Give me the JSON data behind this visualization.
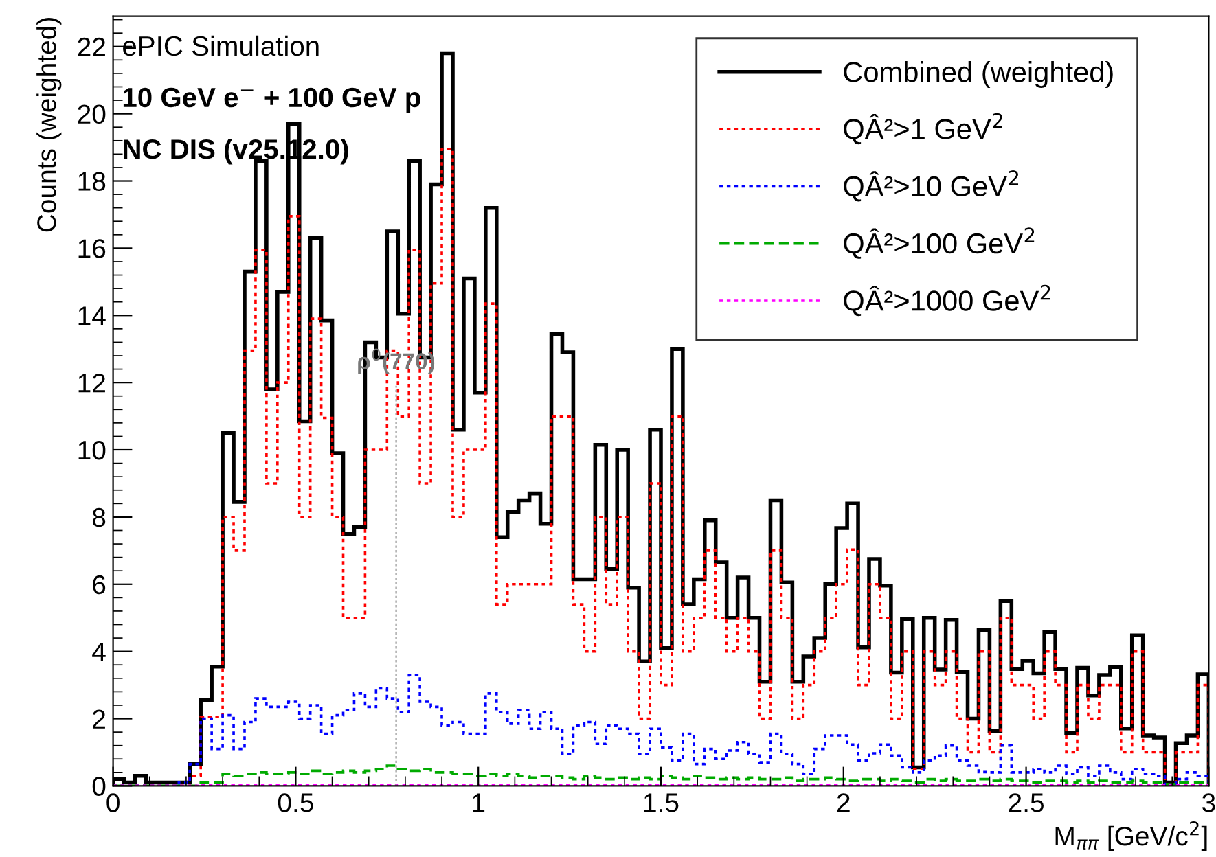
{
  "chart_data": {
    "type": "histogram",
    "xlabel": "M$_{ππ}$ [GeV/c$^{2}$]",
    "ylabel": "Counts (weighted)",
    "annotations": [
      "ePIC Simulation",
      "10 GeV e$^{−}$ + 100 GeV p",
      "NC DIS (v25.12.0)"
    ],
    "bins": [
      0.0,
      0.03,
      0.06,
      0.09,
      0.12,
      0.15,
      0.18,
      0.21,
      0.24,
      0.27,
      0.3,
      0.33,
      0.36,
      0.39,
      0.42,
      0.45,
      0.48,
      0.51,
      0.54,
      0.57,
      0.6,
      0.63,
      0.66,
      0.69,
      0.72,
      0.75,
      0.78,
      0.81,
      0.84,
      0.87,
      0.9,
      0.93,
      0.96,
      0.99,
      1.02,
      1.05,
      1.08,
      1.11,
      1.14,
      1.17,
      1.2,
      1.23,
      1.26,
      1.29,
      1.32,
      1.35,
      1.38,
      1.41,
      1.44,
      1.47,
      1.5,
      1.53,
      1.56,
      1.59,
      1.62,
      1.65,
      1.68,
      1.71,
      1.74,
      1.77,
      1.8,
      1.83,
      1.86,
      1.89,
      1.92,
      1.95,
      1.98,
      2.01,
      2.04,
      2.07,
      2.1,
      2.13,
      2.16,
      2.19,
      2.22,
      2.25,
      2.28,
      2.31,
      2.34,
      2.37,
      2.4,
      2.43,
      2.46,
      2.49,
      2.52,
      2.55,
      2.58,
      2.61,
      2.64,
      2.67,
      2.7,
      2.73,
      2.76,
      2.79,
      2.82,
      2.85,
      2.88,
      2.91,
      2.94,
      2.97,
      3.0
    ],
    "series": [
      {
        "name": "Combined (weighted)",
        "color": "#000000",
        "line_style": "solid",
        "values": [
          0.2,
          0.1,
          0.3,
          0.1,
          0.1,
          0.1,
          0.1,
          0.65,
          2.55,
          3.55,
          10.5,
          8.45,
          15.3,
          18.6,
          11.8,
          14.7,
          19.7,
          10.85,
          16.3,
          13.85,
          9.9,
          7.5,
          7.7,
          13.2,
          12.75,
          16.5,
          14.05,
          18.6,
          12.75,
          17.9,
          21.8,
          10.6,
          15.1,
          11.7,
          17.2,
          7.4,
          8.15,
          8.5,
          8.7,
          7.8,
          13.45,
          12.9,
          6.15,
          6.15,
          10.15,
          6.45,
          10.0,
          5.9,
          3.7,
          10.6,
          4.1,
          13.0,
          5.4,
          6.15,
          7.9,
          6.65,
          5.0,
          6.2,
          5.0,
          3.1,
          8.5,
          6.05,
          3.1,
          3.85,
          4.4,
          6.0,
          7.67,
          8.4,
          4.12,
          6.75,
          5.96,
          3.37,
          4.97,
          0.55,
          5.0,
          3.46,
          4.94,
          3.39,
          2.0,
          4.64,
          1.64,
          5.5,
          3.48,
          3.73,
          3.35,
          4.58,
          3.48,
          1.57,
          3.51,
          2.69,
          3.3,
          3.54,
          1.71,
          4.48,
          1.5,
          1.44,
          0.1,
          1.27,
          1.5,
          3.32
        ]
      },
      {
        "name": "QÂ²>1 GeV$^{2}$",
        "color": "#ff0000",
        "line_style": "dotted",
        "values": [
          0,
          0,
          0,
          0,
          0,
          0,
          0,
          0.3,
          2.05,
          2.05,
          8.0,
          7.0,
          12.95,
          15.95,
          9.0,
          12.0,
          16.95,
          8.0,
          13.9,
          10.95,
          8.0,
          5.0,
          5.0,
          10.0,
          10.0,
          12.95,
          11.0,
          15.95,
          9.0,
          14.95,
          18.95,
          8.0,
          10.0,
          10.0,
          14.35,
          5.4,
          6.0,
          6.0,
          6.0,
          6.0,
          11.0,
          11.0,
          5.4,
          4.0,
          8.0,
          5.4,
          8.0,
          4.0,
          2.0,
          9.0,
          3.0,
          11.0,
          4.0,
          5.0,
          7.0,
          5.0,
          4.0,
          5.0,
          4.0,
          2.0,
          7.0,
          5.0,
          2.0,
          3.0,
          4.0,
          5.0,
          6.0,
          7.03,
          3.0,
          6.0,
          5.0,
          2.0,
          4.0,
          0.5,
          4.0,
          3.0,
          4.0,
          2.0,
          1.0,
          4.0,
          1.0,
          5.0,
          3.0,
          3.0,
          2.0,
          4.0,
          3.0,
          1.0,
          3.0,
          2.0,
          3.0,
          3.0,
          1.0,
          4.0,
          1.0,
          1.0,
          0,
          1.0,
          1.0,
          3.0
        ]
      },
      {
        "name": "QÂ²>10 GeV$^{2}$",
        "color": "#0000ff",
        "line_style": "dotted",
        "values": [
          0,
          0,
          0,
          0,
          0,
          0,
          0.1,
          0.65,
          2.0,
          1.1,
          2.1,
          1.1,
          1.9,
          2.6,
          2.35,
          2.35,
          2.5,
          2.0,
          2.4,
          1.55,
          2.1,
          2.25,
          2.75,
          2.35,
          2.9,
          2.6,
          2.2,
          3.3,
          2.5,
          2.35,
          1.8,
          1.9,
          1.55,
          1.55,
          2.75,
          2.2,
          1.85,
          2.25,
          1.7,
          2.2,
          1.7,
          0.95,
          1.8,
          1.9,
          1.25,
          1.8,
          1.7,
          1.55,
          0.95,
          1.7,
          1.15,
          0.75,
          1.55,
          0.65,
          1.1,
          0.8,
          1.05,
          1.3,
          0.95,
          0.7,
          1.55,
          0.95,
          0.65,
          0.35,
          1.1,
          1.5,
          1.5,
          1.23,
          0.76,
          0.97,
          1.23,
          0.9,
          0.55,
          0.4,
          0.76,
          0.9,
          1.2,
          0.76,
          0.6,
          0.41,
          0.4,
          1.2,
          0.4,
          0.4,
          0.5,
          0.4,
          0.6,
          0.35,
          0.55,
          0.3,
          0.6,
          0.4,
          0.2,
          0.5,
          0.35,
          0.3,
          0,
          0.2,
          0.4,
          0.3
        ]
      },
      {
        "name": "QÂ²>100 GeV$^{2}$",
        "color": "#00aa00",
        "line_style": "dashed",
        "values": [
          0,
          0,
          0,
          0,
          0,
          0,
          0,
          0,
          0.1,
          0.1,
          0.35,
          0.3,
          0.35,
          0.4,
          0.35,
          0.35,
          0.4,
          0.35,
          0.45,
          0.35,
          0.4,
          0.45,
          0.4,
          0.45,
          0.5,
          0.6,
          0.5,
          0.45,
          0.5,
          0.4,
          0.4,
          0.35,
          0.35,
          0.3,
          0.35,
          0.3,
          0.35,
          0.3,
          0.25,
          0.3,
          0.3,
          0.25,
          0.2,
          0.3,
          0.25,
          0.2,
          0.25,
          0.2,
          0.25,
          0.2,
          0.3,
          0.25,
          0.2,
          0.3,
          0.25,
          0.2,
          0.25,
          0.2,
          0.25,
          0.2,
          0.2,
          0.25,
          0.15,
          0.2,
          0.2,
          0.25,
          0.2,
          0.15,
          0.2,
          0.2,
          0.15,
          0.2,
          0.15,
          0.1,
          0.2,
          0.15,
          0.2,
          0.15,
          0.15,
          0.2,
          0.15,
          0.2,
          0.15,
          0.15,
          0.1,
          0.15,
          0.15,
          0.1,
          0.15,
          0.1,
          0.15,
          0.1,
          0.1,
          0.15,
          0.1,
          0.1,
          0.05,
          0.1,
          0.1,
          0.1
        ]
      },
      {
        "name": "QÂ²>1000 GeV$^{2}$",
        "color": "#ff00ff",
        "line_style": "dotted",
        "values": [
          0,
          0,
          0,
          0,
          0,
          0,
          0,
          0,
          0.03,
          0.03,
          0.03,
          0.03,
          0.03,
          0.03,
          0.03,
          0.03,
          0.03,
          0.03,
          0.03,
          0.03,
          0.03,
          0.03,
          0.03,
          0.03,
          0.03,
          0.03,
          0.03,
          0.03,
          0.03,
          0.03,
          0.03,
          0.03,
          0.03,
          0.03,
          0.03,
          0.03,
          0.03,
          0.03,
          0.03,
          0.03,
          0.03,
          0.03,
          0.03,
          0.03,
          0.03,
          0.03,
          0.03,
          0.03,
          0.03,
          0.03,
          0.03,
          0.03,
          0.03,
          0.03,
          0.03,
          0.03,
          0.03,
          0.03,
          0.03,
          0.03,
          0.03,
          0.03,
          0.03,
          0.03,
          0.03,
          0.03,
          0.03,
          0.03,
          0.03,
          0.03,
          0.03,
          0.03,
          0.03,
          0.03,
          0.03,
          0.03,
          0.03,
          0.03,
          0.03,
          0.03,
          0.03,
          0.03,
          0.03,
          0.03,
          0.03,
          0.03,
          0.03,
          0.03,
          0.03,
          0.03,
          0.03,
          0.03,
          0.03,
          0.03,
          0.03,
          0.03,
          0.03,
          0.03,
          0.03,
          0.03
        ]
      }
    ],
    "ref_lines": [
      {
        "axis": "x",
        "value": 0.775,
        "label": "ρ$^{0}$(770)",
        "color": "#999999",
        "line_style": "dotted"
      }
    ],
    "xlim": [
      0,
      3
    ],
    "xticks": [
      0,
      0.5,
      1,
      1.5,
      2,
      2.5,
      3
    ],
    "ylim": [
      0,
      22.9
    ],
    "yticks": [
      0,
      2,
      4,
      6,
      8,
      10,
      12,
      14,
      16,
      18,
      20,
      22
    ],
    "grid": false,
    "legend": "top right"
  }
}
